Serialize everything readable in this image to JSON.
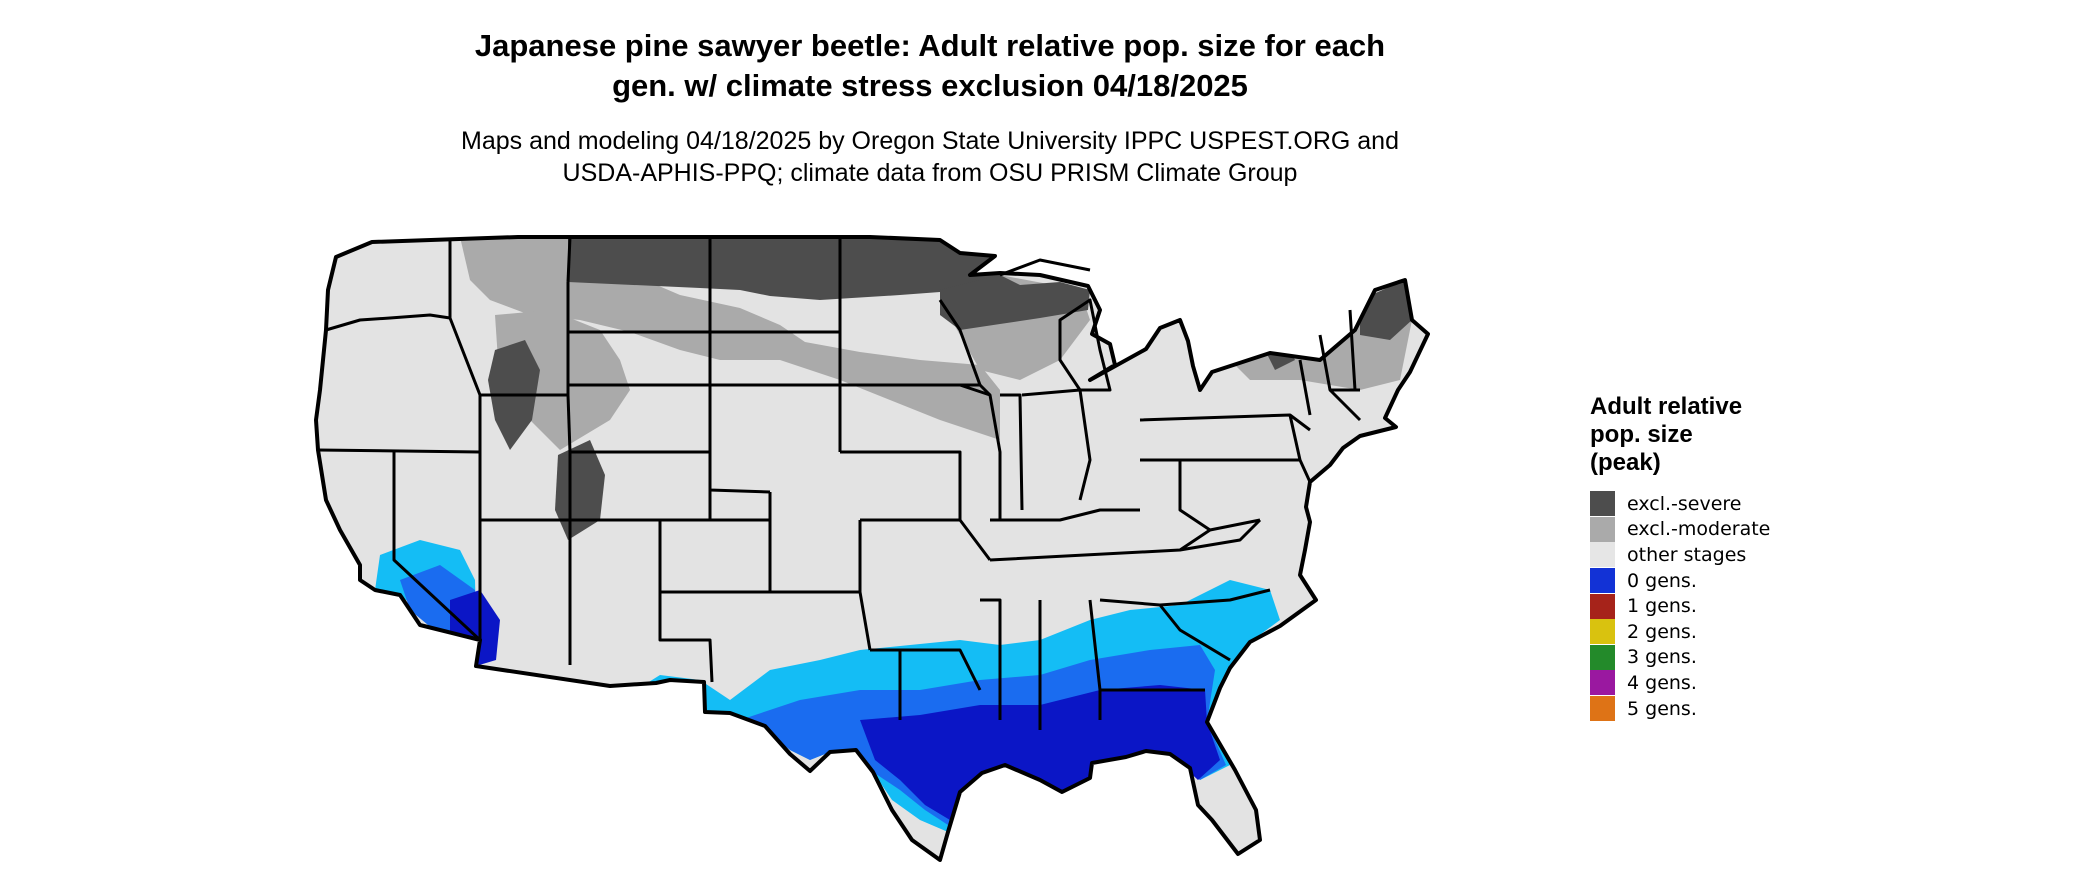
{
  "title": {
    "line1": "Japanese pine sawyer beetle: Adult relative pop. size for each",
    "line2": "gen. w/ climate stress exclusion 04/18/2025"
  },
  "subtitle": {
    "line1": "Maps and modeling 04/18/2025 by Oregon State University IPPC USPEST.ORG and",
    "line2": "USDA-APHIS-PPQ; climate data from OSU PRISM Climate Group"
  },
  "legend": {
    "title_line1": "Adult relative",
    "title_line2": "pop. size",
    "title_line3": "(peak)",
    "items": [
      {
        "label": "excl.-severe",
        "color": "#4d4d4d"
      },
      {
        "label": "excl.-moderate",
        "color": "#aaaaaa"
      },
      {
        "label": "other stages",
        "color": "#e6e6e6"
      },
      {
        "label": "0 gens.",
        "color": "#1232d6"
      },
      {
        "label": "1 gens.",
        "color": "#a6231a"
      },
      {
        "label": "2 gens.",
        "color": "#d9c20f"
      },
      {
        "label": "3 gens.",
        "color": "#238a2a"
      },
      {
        "label": "4 gens.",
        "color": "#9a18a0"
      },
      {
        "label": "5 gens.",
        "color": "#de7316"
      }
    ]
  },
  "map_colors": {
    "background_land": "#e3e3e3",
    "excl_severe": "#4d4d4d",
    "excl_moderate": "#aaaaaa",
    "zero_gens_dark": "#0b16c6",
    "zero_gens_mid": "#1a6cf0",
    "zero_gens_light": "#14bdf5",
    "state_border": "#000000"
  }
}
